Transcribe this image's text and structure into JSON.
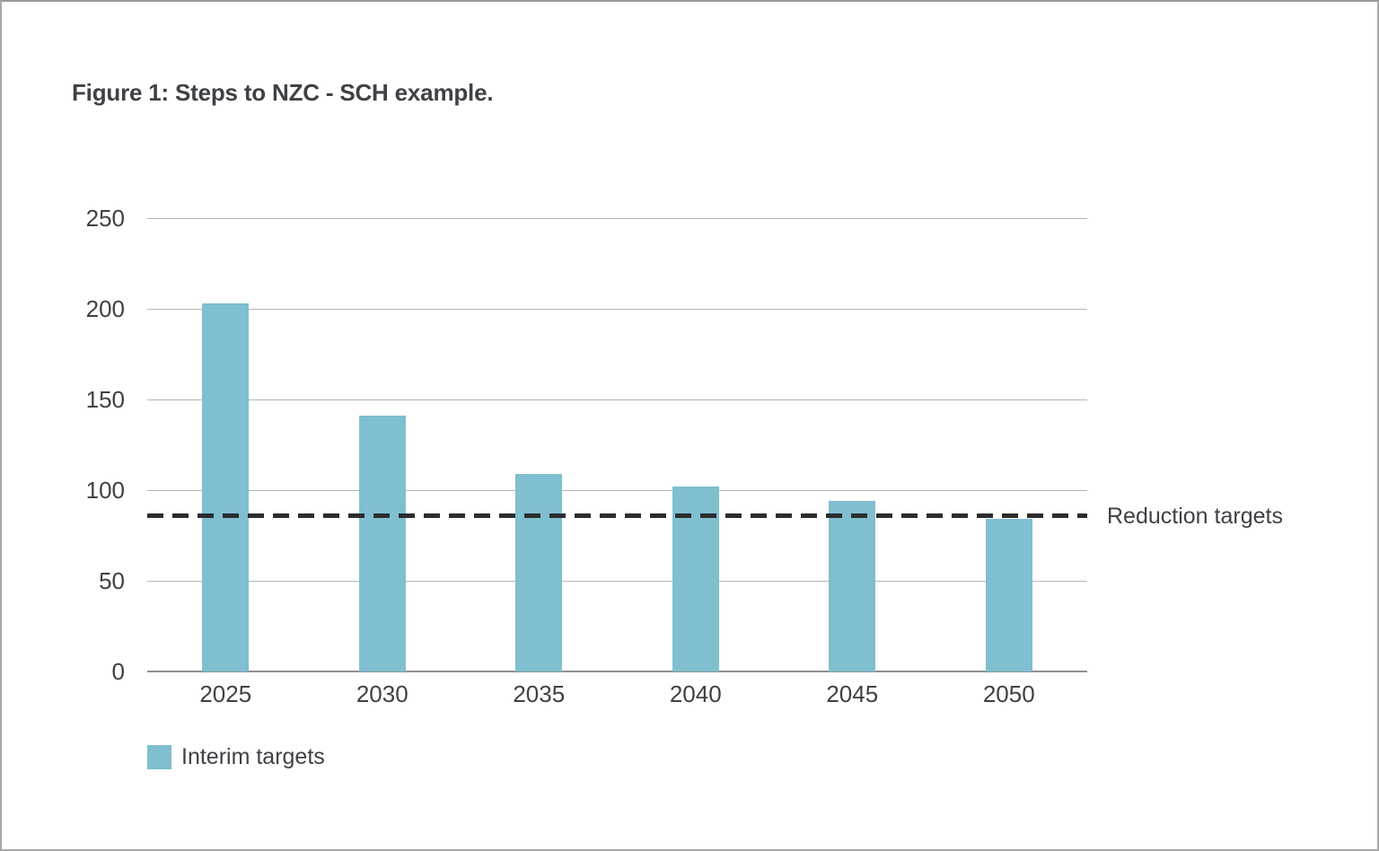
{
  "figure": {
    "title": "Figure 1: Steps to NZC - SCH example."
  },
  "chart_data": {
    "type": "bar",
    "title": "Figure 1: Steps to NZC - SCH example.",
    "categories": [
      "2025",
      "2030",
      "2035",
      "2040",
      "2045",
      "2050"
    ],
    "series": [
      {
        "name": "Interim targets",
        "color": "#7fbfd0",
        "values": [
          203,
          141,
          109,
          102,
          94,
          84
        ]
      }
    ],
    "reference_line": {
      "label": "Reduction targets",
      "value": 86,
      "style": "dashed",
      "color": "#2b2d2e"
    },
    "xlabel": "",
    "ylabel": "",
    "ylim": [
      0,
      250
    ],
    "yticks": [
      0,
      50,
      100,
      150,
      200,
      250
    ],
    "grid": true,
    "legend": {
      "position": "bottom-left",
      "items": [
        {
          "label": "Interim targets",
          "swatch_color": "#7fbfd0"
        }
      ]
    },
    "colors": {
      "bar": "#7fbfd0",
      "gridline": "#b5b5b5",
      "axis_line": "#8f9191",
      "dashed_line": "#2b2d2e",
      "text": "#3e4145",
      "background": "#ffffff",
      "frame_border": "#a8a8a8"
    }
  }
}
